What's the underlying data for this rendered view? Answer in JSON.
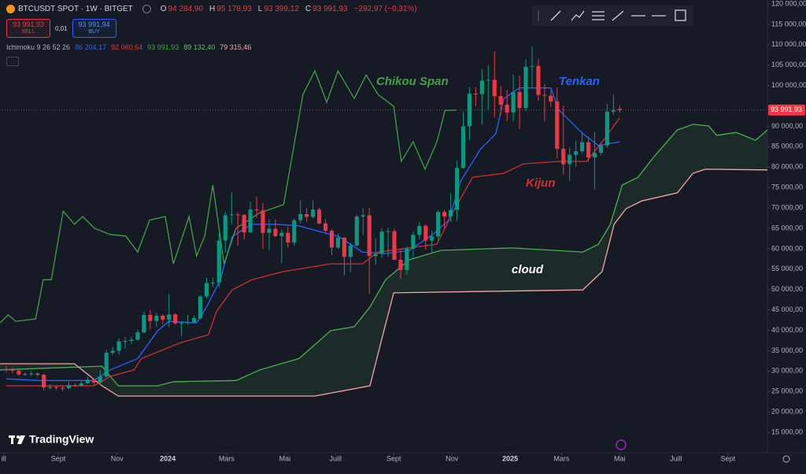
{
  "chart_data": {
    "type": "candlestick",
    "title": "BTCUSDT SPOT · 1W · BITGET",
    "header": [
      {
        "label": "O",
        "value": "94 284,90"
      },
      {
        "label": "H",
        "value": "95 178,93"
      },
      {
        "label": "L",
        "value": "93 399,12"
      },
      {
        "label": "C",
        "value": "93 991,93"
      }
    ],
    "change": "−292,97 (−0,31%)",
    "trade": {
      "sell_price": "93 991,93",
      "sell": "SELL",
      "spread": "0,01",
      "buy_price": "93 991,94",
      "buy": "BUY"
    },
    "indicator": {
      "label": "Ichimoku 9 26 52 26",
      "values": [
        {
          "text": "86 204,17",
          "color": "#2962ff"
        },
        {
          "text": "92 060,64",
          "color": "#e53935"
        },
        {
          "text": "93 991,93",
          "color": "#43a047"
        },
        {
          "text": "89 132,40",
          "color": "#66bb6a"
        },
        {
          "text": "79 315,46",
          "color": "#f8a5a5"
        }
      ]
    },
    "brand": "TradingView",
    "up_color": "#089981",
    "down_color": "#f23645",
    "grid": false,
    "x": [
      0,
      1,
      2,
      3,
      4,
      5,
      6,
      7,
      8,
      9,
      10,
      11,
      12,
      13,
      14,
      15,
      16,
      17,
      18,
      19,
      20,
      21,
      22,
      23,
      24,
      25,
      26,
      27,
      28,
      29,
      30,
      31,
      32,
      33,
      34,
      35,
      36,
      37,
      38,
      39,
      40,
      41,
      42,
      43,
      44,
      45,
      46,
      47,
      48,
      49,
      50,
      51,
      52,
      53,
      54,
      55,
      56,
      57,
      58,
      59,
      60,
      61,
      62,
      63,
      64,
      65,
      66,
      67,
      68,
      69,
      70,
      71,
      72,
      73,
      74,
      75,
      76,
      77,
      78,
      79,
      80,
      81,
      82,
      83,
      84,
      85,
      86,
      87,
      88,
      89,
      90,
      91,
      92,
      93,
      94,
      95,
      96,
      97,
      98
    ],
    "open": [
      30500,
      30300,
      30100,
      29200,
      29300,
      29400,
      29100,
      26000,
      26100,
      25900,
      25800,
      26600,
      26500,
      27000,
      27900,
      27200,
      28700,
      34500,
      35000,
      37300,
      37400,
      37700,
      39500,
      43800,
      42300,
      43600,
      42600,
      43900,
      41700,
      41800,
      42000,
      43000,
      48300,
      51600,
      51700,
      62000,
      68200,
      68400,
      68300,
      64000,
      69600,
      69400,
      63900,
      64900,
      63100,
      63900,
      61500,
      67000,
      68500,
      67800,
      69600,
      66200,
      64400,
      60300,
      62700,
      58000,
      60800,
      67900,
      68200,
      58200,
      58700,
      64200,
      64300,
      57300,
      54800,
      60000,
      63400,
      65600,
      62000,
      63000,
      69000,
      67900,
      69500,
      79800,
      90000,
      98000,
      97900,
      101200,
      101400,
      97400,
      95300,
      93400,
      98400,
      94500,
      104600,
      104800,
      97700,
      97500,
      96100,
      84500,
      80700,
      83000,
      83900,
      86100,
      82400,
      83500,
      85300,
      93600,
      94284.9
    ],
    "high": [
      31300,
      30900,
      30400,
      29700,
      30100,
      29700,
      29300,
      26800,
      26500,
      26400,
      27400,
      27000,
      27500,
      28600,
      28200,
      30300,
      35200,
      35900,
      38000,
      38400,
      38400,
      40200,
      44600,
      45000,
      44300,
      43900,
      48900,
      44200,
      42300,
      43700,
      43600,
      48600,
      52800,
      52900,
      63900,
      69100,
      73800,
      68900,
      68500,
      71600,
      72700,
      71200,
      67200,
      67200,
      64700,
      65500,
      67400,
      71900,
      70000,
      71900,
      70000,
      67300,
      64800,
      63800,
      62900,
      61400,
      68400,
      69900,
      70000,
      62700,
      65000,
      65100,
      64900,
      59800,
      60600,
      64100,
      66500,
      66000,
      64500,
      69400,
      69500,
      73600,
      81500,
      93500,
      99600,
      99700,
      104000,
      105000,
      108300,
      99900,
      98900,
      102700,
      102500,
      106400,
      109600,
      106500,
      100300,
      98800,
      99500,
      95000,
      84900,
      86500,
      88700,
      87500,
      88500,
      86100,
      95500,
      97700,
      95178.93
    ],
    "low": [
      29700,
      29500,
      28900,
      28900,
      28800,
      28700,
      25200,
      25600,
      25400,
      25100,
      25600,
      26100,
      26200,
      26900,
      26600,
      26600,
      28500,
      33900,
      34100,
      35600,
      36600,
      37500,
      39300,
      40200,
      40800,
      41500,
      40800,
      41400,
      38600,
      41400,
      41900,
      42600,
      47800,
      50600,
      50500,
      59000,
      66000,
      60800,
      62300,
      63900,
      67500,
      60000,
      59700,
      62800,
      56500,
      60200,
      60700,
      66100,
      66600,
      67500,
      66000,
      64000,
      58400,
      60000,
      53500,
      54300,
      60600,
      63400,
      49000,
      56100,
      57800,
      58000,
      57200,
      52600,
      53600,
      57500,
      62300,
      59800,
      58900,
      62000,
      65000,
      66600,
      66800,
      79600,
      86600,
      94900,
      90500,
      94100,
      92200,
      92800,
      91300,
      91200,
      89300,
      93700,
      99500,
      96200,
      91200,
      94800,
      82200,
      78200,
      76600,
      80100,
      83300,
      81300,
      74500,
      83000,
      84700,
      92800,
      93399.12
    ],
    "close": [
      30300,
      30100,
      29200,
      29300,
      29400,
      29100,
      26000,
      26100,
      25900,
      25800,
      26600,
      26500,
      27000,
      27900,
      27200,
      28700,
      34500,
      35000,
      37300,
      37400,
      37700,
      39500,
      43800,
      42300,
      43600,
      42600,
      43900,
      41700,
      41800,
      42000,
      43000,
      48300,
      51600,
      51700,
      62000,
      68200,
      68400,
      68300,
      64000,
      69600,
      69400,
      63900,
      64900,
      63100,
      63900,
      61500,
      67000,
      68500,
      67800,
      69600,
      66200,
      64400,
      60300,
      62700,
      58000,
      60800,
      67900,
      68200,
      58200,
      58700,
      64200,
      64300,
      57300,
      54800,
      60000,
      63400,
      65600,
      62000,
      63000,
      69000,
      67900,
      69500,
      79800,
      90000,
      98000,
      97900,
      101200,
      101400,
      97400,
      95300,
      93400,
      98400,
      94500,
      104600,
      104800,
      97700,
      97500,
      96100,
      84500,
      80700,
      83000,
      83900,
      86100,
      82400,
      83500,
      85300,
      93600,
      94000,
      93991.93
    ],
    "lines": [
      {
        "name": "Tenkan",
        "color": "#2962ff",
        "x": [
          0,
          5.3,
          14,
          16.6,
          21,
          24.2,
          26,
          30.4,
          32,
          34.2,
          36.1,
          39.2,
          43,
          46.8,
          50.6,
          53.1,
          56.9,
          60.6,
          64.4,
          68.2,
          70.7,
          72.6,
          75.7,
          78.2,
          79.5,
          82,
          87,
          88.3,
          92.1,
          94.6,
          98
        ],
        "values": [
          28100,
          27700,
          27700,
          30300,
          33100,
          39900,
          42200,
          41800,
          45700,
          52400,
          63000,
          66000,
          66000,
          65600,
          64000,
          63000,
          59200,
          58800,
          59600,
          63600,
          67000,
          76600,
          84300,
          88200,
          96800,
          99400,
          99400,
          94000,
          88200,
          85300,
          86204.17
        ]
      },
      {
        "name": "Kijun",
        "color": "#d32f2f",
        "x": [
          0,
          14,
          16.6,
          20.4,
          21.6,
          27.9,
          32.3,
          33.6,
          36.1,
          39.2,
          44.3,
          51.8,
          56.9,
          59.4,
          68.8,
          71.3,
          74.5,
          79.5,
          82.6,
          88.3,
          92.7,
          95.2,
          98
        ],
        "values": [
          26400,
          26400,
          28700,
          30300,
          33100,
          37000,
          38900,
          44700,
          49900,
          52400,
          54400,
          56300,
          56300,
          59200,
          61100,
          68800,
          77500,
          78500,
          80800,
          81400,
          81400,
          86200,
          92060.64
        ]
      },
      {
        "name": "Chikou Span",
        "color": "#43a047",
        "x": [
          -1,
          0.3,
          1.5,
          4.7,
          5.9,
          7.2,
          9.1,
          10.9,
          12.2,
          14.1,
          16.6,
          19.1,
          21,
          22.9,
          25.4,
          26.7,
          29.2,
          30.4,
          31.7,
          33,
          34.8,
          36.7,
          40.5,
          44.3,
          47.4,
          49.3,
          51.2,
          53,
          55.6,
          57.5,
          59.4,
          61.9,
          63.1,
          65,
          66.9,
          68.8,
          70.1,
          71.9
        ],
        "values": [
          41800,
          43800,
          42200,
          42800,
          52400,
          52400,
          69200,
          66000,
          67900,
          65000,
          63500,
          63100,
          59200,
          67000,
          67900,
          56300,
          67900,
          58200,
          63100,
          75600,
          56300,
          65000,
          68800,
          70800,
          97800,
          103600,
          95900,
          103600,
          96800,
          102600,
          97800,
          94900,
          81400,
          86200,
          79500,
          86200,
          93900,
          93991.93
        ]
      }
    ],
    "cloud": {
      "label": "cloud",
      "fill": "#43a047",
      "upper": {
        "color": "#4caf50",
        "x": [
          -1,
          15.3,
          17.9,
          24.2,
          26.7,
          36.7,
          40.5,
          46.8,
          51.8,
          55.6,
          58.1,
          60.6,
          64.4,
          69.4,
          80.8,
          92.1,
          94.6,
          96.5,
          98.4,
          100.9,
          103.4,
          107.2,
          109.7,
          112.2,
          113.5,
          116.6,
          119.7,
          121.6
        ],
        "values": [
          30300,
          31200,
          26400,
          26400,
          27400,
          27700,
          30300,
          33100,
          39900,
          40900,
          45700,
          52400,
          57300,
          59600,
          60200,
          59200,
          61100,
          66000,
          75600,
          77500,
          82400,
          89100,
          90500,
          90100,
          87800,
          88500,
          86600,
          89132.4
        ]
      },
      "lower": {
        "color": "#f8a5a5",
        "x": [
          -1,
          10.9,
          15.3,
          17.9,
          40.5,
          49.3,
          58.1,
          60,
          61.9,
          92.1,
          95.2,
          97.1,
          99,
          101.5,
          107.2,
          109.7,
          111.7,
          121.6
        ],
        "values": [
          31800,
          31800,
          26400,
          23900,
          23900,
          23900,
          26400,
          37900,
          49200,
          49900,
          54400,
          66000,
          69800,
          71700,
          73700,
          78500,
          79500,
          79315.46
        ]
      }
    },
    "last_price": {
      "value": 93991.93,
      "label": "93 991,93",
      "color": "#f23645"
    },
    "xlim": [
      -1,
      121.6
    ],
    "xticks": [
      {
        "value": -0.4,
        "label": "ill"
      },
      {
        "value": 8.3,
        "label": "Sept"
      },
      {
        "value": 17.7,
        "label": "Nov"
      },
      {
        "value": 25.8,
        "label": "2024"
      },
      {
        "value": 35.2,
        "label": "Mars"
      },
      {
        "value": 44.5,
        "label": "Mai"
      },
      {
        "value": 52.6,
        "label": "Juill"
      },
      {
        "value": 61.9,
        "label": "Sept"
      },
      {
        "value": 71.2,
        "label": "Nov"
      },
      {
        "value": 80.5,
        "label": "2025"
      },
      {
        "value": 88.7,
        "label": "Mars"
      },
      {
        "value": 98,
        "label": "Mai"
      },
      {
        "value": 107,
        "label": "Juill"
      },
      {
        "value": 115.3,
        "label": "Sept"
      }
    ],
    "ylim": [
      10000,
      120000
    ],
    "yticks": [
      {
        "value": 15000,
        "label": "15 000,00"
      },
      {
        "value": 20000,
        "label": "20 000,00"
      },
      {
        "value": 25000,
        "label": "25 000,00"
      },
      {
        "value": 30000,
        "label": "30 000,00"
      },
      {
        "value": 35000,
        "label": "35 000,00"
      },
      {
        "value": 40000,
        "label": "40 000,00"
      },
      {
        "value": 45000,
        "label": "45 000,00"
      },
      {
        "value": 50000,
        "label": "50 000,00"
      },
      {
        "value": 55000,
        "label": "55 000,00"
      },
      {
        "value": 60000,
        "label": "60 000,00"
      },
      {
        "value": 65000,
        "label": "65 000,00"
      },
      {
        "value": 70000,
        "label": "70 000,00"
      },
      {
        "value": 75000,
        "label": "75 000,00"
      },
      {
        "value": 80000,
        "label": "80 000,00"
      },
      {
        "value": 85000,
        "label": "85 000,00"
      },
      {
        "value": 90000,
        "label": "90 000,00"
      },
      {
        "value": 100000,
        "label": "100 000,00"
      },
      {
        "value": 105000,
        "label": "105 000,00"
      },
      {
        "value": 110000,
        "label": "110 000,00"
      },
      {
        "value": 115000,
        "label": "115 000,00"
      },
      {
        "value": 120000,
        "label": "120 000,00"
      }
    ]
  }
}
